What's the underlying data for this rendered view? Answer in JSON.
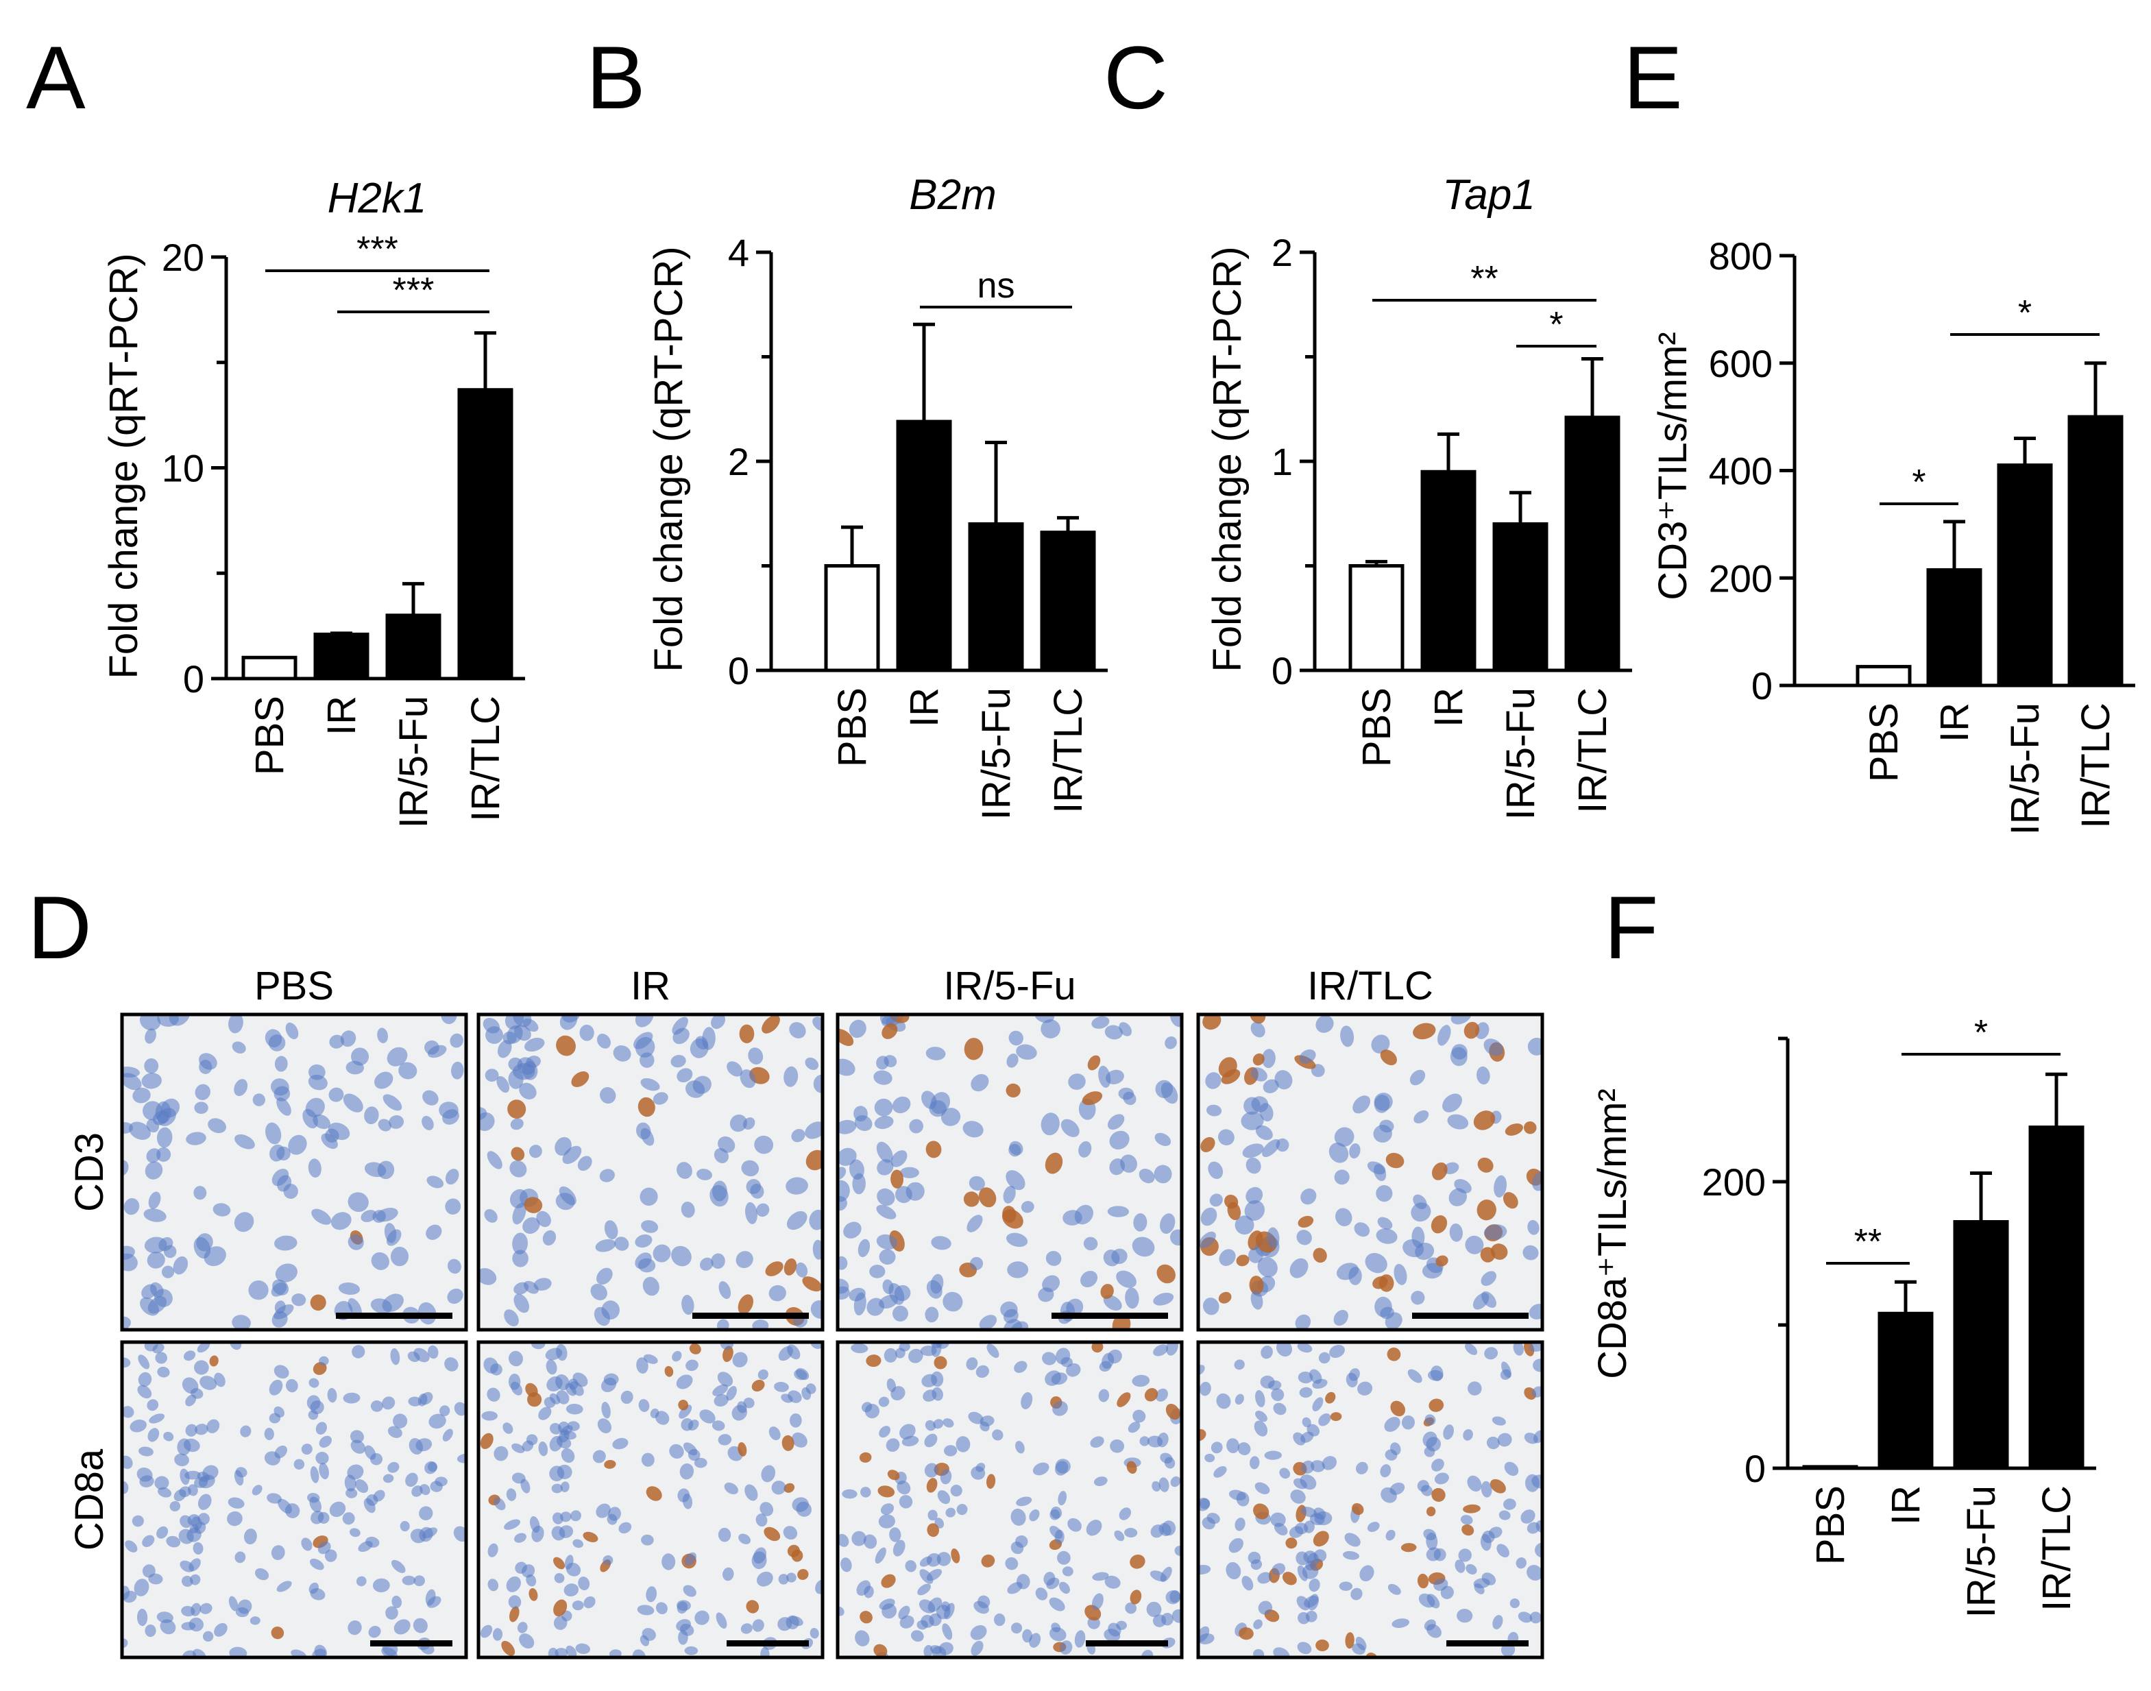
{
  "panels": {
    "A": "A",
    "B": "B",
    "C": "C",
    "D": "D",
    "E": "E",
    "F": "F"
  },
  "chart_data": [
    {
      "id": "A",
      "type": "bar",
      "title": "H2k1",
      "ylabel": "Fold change (qRT-PCR)",
      "xlabel": "",
      "ylim": [
        0,
        20
      ],
      "yticks": [
        "0",
        "10",
        "20"
      ],
      "minor_ticks": [
        5,
        15
      ],
      "categories": [
        "PBS",
        "IR",
        "IR/5-Fu",
        "IR/TLC"
      ],
      "values": [
        1.0,
        2.1,
        3.0,
        13.7
      ],
      "errors": [
        0,
        0.05,
        1.5,
        2.7
      ],
      "fills": [
        "white",
        "black",
        "black",
        "black"
      ],
      "significance": [
        {
          "from": "PBS",
          "to": "IR/TLC",
          "label": "***"
        },
        {
          "from": "IR",
          "to": "IR/TLC",
          "label": "***"
        }
      ]
    },
    {
      "id": "B",
      "type": "bar",
      "title": "B2m",
      "ylabel": "Fold change (qRT-PCR)",
      "xlabel": "",
      "ylim": [
        0,
        4
      ],
      "yticks": [
        "0",
        "2",
        "4"
      ],
      "minor_ticks": [
        1,
        3
      ],
      "categories": [
        "PBS",
        "IR",
        "IR/5-Fu",
        "IR/TLC"
      ],
      "values": [
        1.0,
        2.38,
        1.4,
        1.32
      ],
      "errors": [
        0.37,
        0.93,
        0.78,
        0.14
      ],
      "fills": [
        "white",
        "black",
        "black",
        "black"
      ],
      "significance": [
        {
          "from": "IR",
          "to": "IR/TLC",
          "label": "ns"
        }
      ]
    },
    {
      "id": "C",
      "type": "bar",
      "title": "Tap1",
      "ylabel": "Fold change (qRT-PCR)",
      "xlabel": "",
      "ylim": [
        0,
        2
      ],
      "yticks": [
        "0",
        "1",
        "2"
      ],
      "minor_ticks": [
        0.5,
        1.5
      ],
      "categories": [
        "PBS",
        "IR",
        "IR/5-Fu",
        "IR/TLC"
      ],
      "values": [
        0.5,
        0.95,
        0.7,
        1.21
      ],
      "errors": [
        0.02,
        0.18,
        0.15,
        0.28
      ],
      "fills": [
        "white",
        "black",
        "black",
        "black"
      ],
      "significance": [
        {
          "from": "PBS",
          "to": "IR/TLC",
          "label": "**"
        },
        {
          "from": "IR/5-Fu",
          "to": "IR/TLC",
          "label": "*"
        }
      ]
    },
    {
      "id": "E",
      "type": "bar",
      "title": "",
      "ylabel": "CD3⁺TILs/mm²",
      "xlabel": "",
      "ylim": [
        0,
        800
      ],
      "yticks": [
        "0",
        "200",
        "400",
        "600",
        "800"
      ],
      "minor_ticks": [],
      "categories": [
        "PBS",
        "IR",
        "IR/5-Fu",
        "IR/TLC"
      ],
      "values": [
        35,
        215,
        410,
        500
      ],
      "errors": [
        0,
        90,
        50,
        100
      ],
      "fills": [
        "white",
        "black",
        "black",
        "black"
      ],
      "significance": [
        {
          "from": "PBS",
          "to": "IR",
          "label": "*"
        },
        {
          "from": "IR",
          "to": "IR/TLC",
          "label": "*"
        }
      ]
    },
    {
      "id": "F",
      "type": "bar",
      "title": "",
      "ylabel": "CD8a⁺TILs/mm²",
      "xlabel": "",
      "ylim": [
        0,
        300
      ],
      "yticks": [
        "0",
        "200"
      ],
      "minor_ticks": [
        100,
        300
      ],
      "categories": [
        "PBS",
        "IR",
        "IR/5-Fu",
        "IR/TLC"
      ],
      "values": [
        1,
        108,
        172,
        238
      ],
      "errors": [
        0,
        22,
        34,
        37
      ],
      "fills": [
        "white",
        "black",
        "black",
        "black"
      ],
      "significance": [
        {
          "from": "PBS",
          "to": "IR",
          "label": "**"
        },
        {
          "from": "IR",
          "to": "IR/TLC",
          "label": "*"
        }
      ]
    }
  ],
  "micrographs": {
    "columns": [
      "PBS",
      "IR",
      "IR/5-Fu",
      "IR/TLC"
    ],
    "rows": [
      "CD3",
      "CD8a"
    ],
    "stain_colors": {
      "hematoxylin": "#5a7bc4",
      "dab": "#b5652b",
      "background": "#eef0f2"
    }
  }
}
